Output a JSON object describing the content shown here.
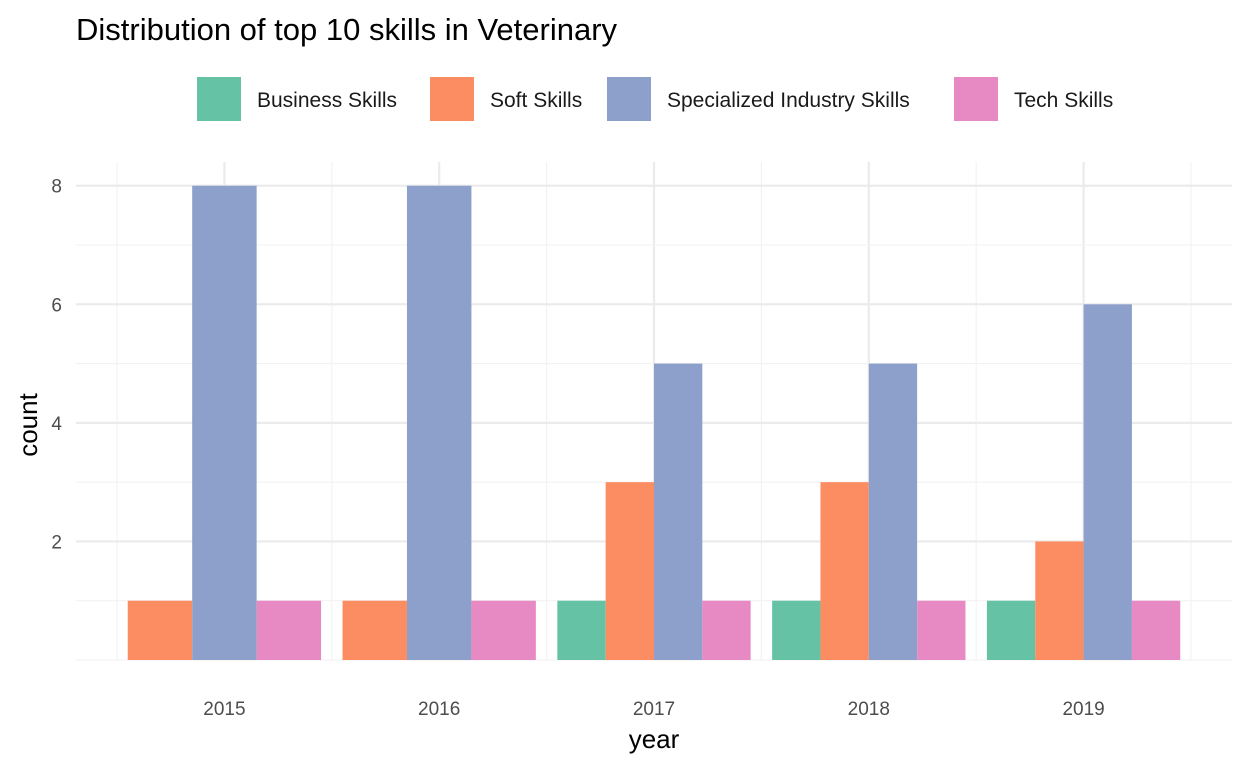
{
  "chart_data": {
    "type": "bar",
    "title": "Distribution of top 10 skills in Veterinary",
    "xlabel": "year",
    "ylabel": "count",
    "categories": [
      "2015",
      "2016",
      "2017",
      "2018",
      "2019"
    ],
    "series": [
      {
        "name": "Business Skills",
        "color": "#66c2a5",
        "values": [
          0,
          0,
          1,
          1,
          1
        ]
      },
      {
        "name": "Soft Skills",
        "color": "#fc8d62",
        "values": [
          1,
          1,
          3,
          3,
          2
        ]
      },
      {
        "name": "Specialized Industry Skills",
        "color": "#8da0cb",
        "values": [
          8,
          8,
          5,
          5,
          6
        ]
      },
      {
        "name": "Tech Skills",
        "color": "#e78ac3",
        "values": [
          1,
          1,
          1,
          1,
          1
        ]
      }
    ],
    "ylim": [
      0,
      8.4
    ],
    "yticks": [
      2,
      4,
      6,
      8
    ],
    "grid": true,
    "legend_position": "top",
    "bar_position": "dodge-preserve-single"
  }
}
